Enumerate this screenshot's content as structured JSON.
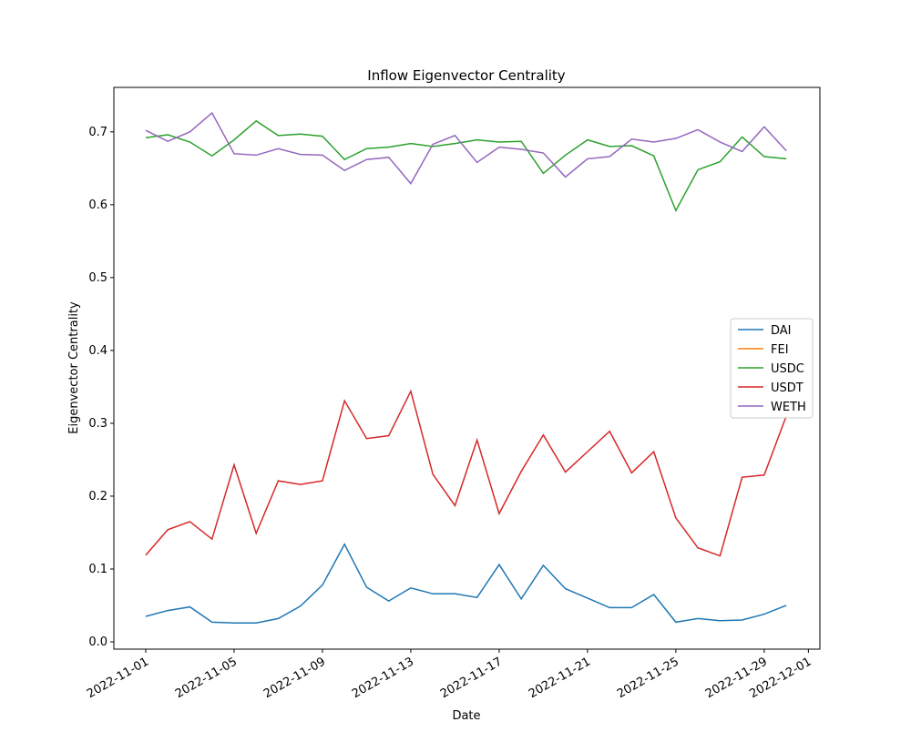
{
  "chart_data": {
    "type": "line",
    "title": "Inflow Eigenvector Centrality",
    "x_label": "Date",
    "y_label": "Eigenvector Centrality",
    "x": [
      "2022-11-01",
      "2022-11-02",
      "2022-11-03",
      "2022-11-04",
      "2022-11-05",
      "2022-11-06",
      "2022-11-07",
      "2022-11-08",
      "2022-11-09",
      "2022-11-10",
      "2022-11-11",
      "2022-11-12",
      "2022-11-13",
      "2022-11-14",
      "2022-11-15",
      "2022-11-16",
      "2022-11-17",
      "2022-11-18",
      "2022-11-19",
      "2022-11-20",
      "2022-11-21",
      "2022-11-22",
      "2022-11-23",
      "2022-11-24",
      "2022-11-25",
      "2022-11-26",
      "2022-11-27",
      "2022-11-28",
      "2022-11-29",
      "2022-11-30"
    ],
    "series": [
      {
        "name": "DAI",
        "color": "#1f77b4",
        "values": [
          0.035,
          0.043,
          0.048,
          0.027,
          0.026,
          0.026,
          0.032,
          0.049,
          0.078,
          0.134,
          0.075,
          0.056,
          0.074,
          0.066,
          0.066,
          0.061,
          0.106,
          0.059,
          0.105,
          0.073,
          0.06,
          0.047,
          0.047,
          0.065,
          0.027,
          0.032,
          0.029,
          0.03,
          0.038,
          0.05
        ]
      },
      {
        "name": "FEI",
        "color": "#ff7f0e",
        "values": [
          null,
          null,
          null,
          null,
          null,
          null,
          null,
          null,
          null,
          null,
          null,
          null,
          null,
          null,
          null,
          null,
          null,
          null,
          null,
          null,
          null,
          null,
          null,
          null,
          null,
          null,
          null,
          null,
          null,
          null
        ]
      },
      {
        "name": "USDC",
        "color": "#2ca02c",
        "values": [
          0.692,
          0.696,
          0.686,
          0.667,
          0.689,
          0.715,
          0.695,
          0.697,
          0.694,
          0.662,
          0.677,
          0.679,
          0.684,
          0.68,
          0.684,
          0.689,
          0.686,
          0.687,
          0.643,
          0.668,
          0.689,
          0.68,
          0.681,
          0.667,
          0.592,
          0.648,
          0.659,
          0.693,
          0.666,
          0.663
        ]
      },
      {
        "name": "USDT",
        "color": "#d62728",
        "values": [
          0.119,
          0.154,
          0.165,
          0.141,
          0.243,
          0.149,
          0.221,
          0.216,
          0.221,
          0.331,
          0.279,
          0.283,
          0.344,
          0.23,
          0.187,
          0.277,
          0.176,
          0.234,
          0.284,
          0.233,
          0.261,
          0.289,
          0.232,
          0.261,
          0.17,
          0.129,
          0.118,
          0.226,
          0.229,
          0.31
        ]
      },
      {
        "name": "WETH",
        "color": "#9467bd",
        "values": [
          0.702,
          0.687,
          0.7,
          0.726,
          0.67,
          0.668,
          0.677,
          0.669,
          0.668,
          0.647,
          0.662,
          0.665,
          0.629,
          0.683,
          0.695,
          0.658,
          0.679,
          0.676,
          0.671,
          0.638,
          0.663,
          0.666,
          0.69,
          0.686,
          0.691,
          0.703,
          0.686,
          0.673,
          0.707,
          0.674
        ]
      }
    ],
    "xlim": [
      "2022-10-30T13:23",
      "2022-12-01T12:30"
    ],
    "xticks": [
      "2022-11-01",
      "2022-11-05",
      "2022-11-09",
      "2022-11-13",
      "2022-11-17",
      "2022-11-21",
      "2022-11-25",
      "2022-11-29",
      "2022-12-01"
    ],
    "ylim": [
      -0.01,
      0.761
    ],
    "yticks": [
      {
        "value": 0,
        "label": "0.0"
      },
      0.1,
      0.2,
      0.3,
      0.4,
      0.5,
      0.6,
      0.7
    ],
    "grid": false,
    "legend": "center right"
  }
}
